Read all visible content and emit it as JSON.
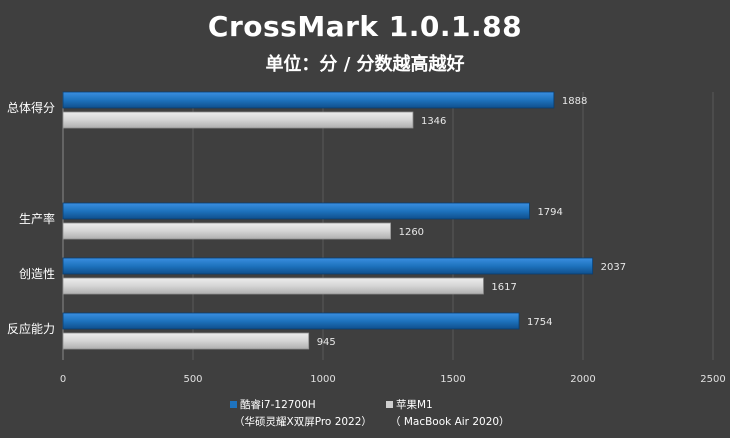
{
  "title": "CrossMark 1.0.1.88",
  "subtitle": "单位：分 / 分数越高越好",
  "chart_data": {
    "type": "bar",
    "orientation": "horizontal",
    "categories": [
      "总体得分",
      "生产率",
      "创造性",
      "反应能力"
    ],
    "series": [
      {
        "name": "酷睿i7-12700H",
        "name_line2": "（华硕灵耀X双屏Pro 2022）",
        "color": "#1e73be",
        "values": [
          1888,
          1794,
          2037,
          1754
        ]
      },
      {
        "name": "苹果M1",
        "name_line2": "（ MacBook Air 2020）",
        "color": "#d9d9d9",
        "values": [
          1346,
          1260,
          1617,
          945
        ]
      }
    ],
    "xlim": [
      0,
      2500
    ],
    "xticks": [
      0,
      500,
      1000,
      1500,
      2000,
      2500
    ],
    "grid": true,
    "legend": "bottom"
  }
}
